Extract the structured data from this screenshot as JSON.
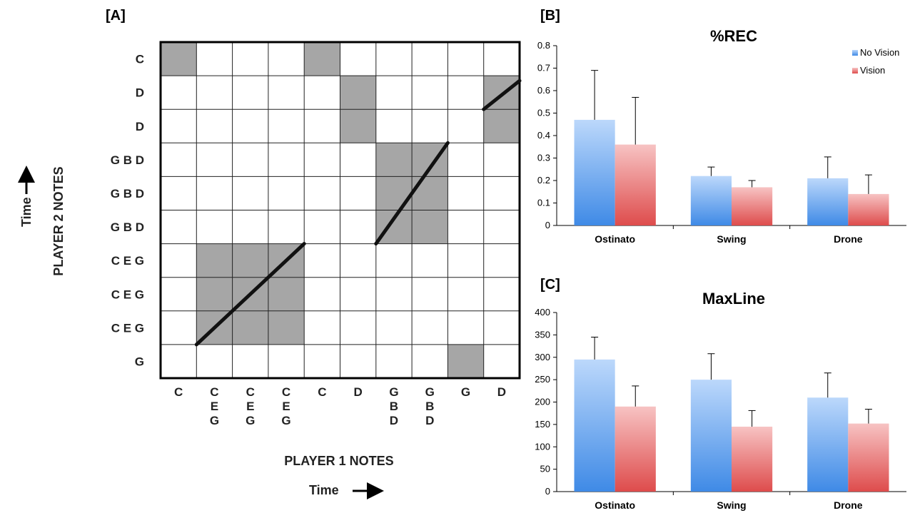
{
  "panel_a": {
    "label": "[A]",
    "player2_title": "PLAYER 2 NOTES",
    "player1_title": "PLAYER 1 NOTES",
    "time_label": "Time",
    "rows": [
      "C",
      "D",
      "D",
      "G B D",
      "G B D",
      "G B D",
      "C E G",
      "C E G",
      "C E G",
      "G"
    ],
    "cols": [
      [
        "C"
      ],
      [
        "C",
        "E",
        "G"
      ],
      [
        "C",
        "E",
        "G"
      ],
      [
        "C",
        "E",
        "G"
      ],
      [
        "C"
      ],
      [
        "D"
      ],
      [
        "G",
        "B",
        "D"
      ],
      [
        "G",
        "B",
        "D"
      ],
      [
        "G"
      ],
      [
        "D"
      ]
    ],
    "filled_cells": [
      [
        0,
        0
      ],
      [
        0,
        4
      ],
      [
        1,
        5
      ],
      [
        2,
        5
      ],
      [
        1,
        9
      ],
      [
        2,
        9
      ],
      [
        3,
        6
      ],
      [
        3,
        7
      ],
      [
        4,
        6
      ],
      [
        4,
        7
      ],
      [
        5,
        6
      ],
      [
        5,
        7
      ],
      [
        6,
        1
      ],
      [
        6,
        2
      ],
      [
        6,
        3
      ],
      [
        7,
        1
      ],
      [
        7,
        2
      ],
      [
        7,
        3
      ],
      [
        8,
        1
      ],
      [
        8,
        2
      ],
      [
        8,
        3
      ],
      [
        9,
        8
      ]
    ],
    "diagonal_lines": [
      {
        "from_cell": [
          8,
          1
        ],
        "to_cell": [
          6,
          3
        ]
      },
      {
        "from_cell": [
          5,
          6
        ],
        "to_cell": [
          3,
          7
        ]
      },
      {
        "from_cell": [
          2,
          9
        ],
        "to_cell": [
          1,
          9
        ]
      }
    ],
    "fill_color": "#a6a6a6"
  },
  "chart_data": [
    {
      "type": "bar",
      "panel": "[B]",
      "title": "%REC",
      "categories": [
        "Ostinato",
        "Swing",
        "Drone"
      ],
      "series": [
        {
          "name": "No Vision",
          "values": [
            0.47,
            0.22,
            0.21
          ],
          "errors": [
            0.22,
            0.04,
            0.095
          ],
          "color": "#7fb2ee"
        },
        {
          "name": "Vision",
          "values": [
            0.36,
            0.17,
            0.14
          ],
          "errors": [
            0.21,
            0.03,
            0.085
          ],
          "color": "#ee8484"
        }
      ],
      "ylim": [
        0,
        0.8
      ],
      "yticks": [
        "0",
        "0.1",
        "0.2",
        "0.3",
        "0.4",
        "0.5",
        "0.6",
        "0.7",
        "0.8"
      ],
      "legend": "top-right"
    },
    {
      "type": "bar",
      "panel": "[C]",
      "title": "MaxLine",
      "categories": [
        "Ostinato",
        "Swing",
        "Drone"
      ],
      "series": [
        {
          "name": "No Vision",
          "values": [
            295,
            250,
            210
          ],
          "errors": [
            50,
            58,
            55
          ],
          "color": "#7fb2ee"
        },
        {
          "name": "Vision",
          "values": [
            190,
            145,
            152
          ],
          "errors": [
            46,
            36,
            32
          ],
          "color": "#ee8484"
        }
      ],
      "ylim": [
        0,
        400
      ],
      "yticks": [
        "0",
        "50",
        "100",
        "150",
        "200",
        "250",
        "300",
        "350",
        "400"
      ],
      "legend": "none"
    }
  ]
}
